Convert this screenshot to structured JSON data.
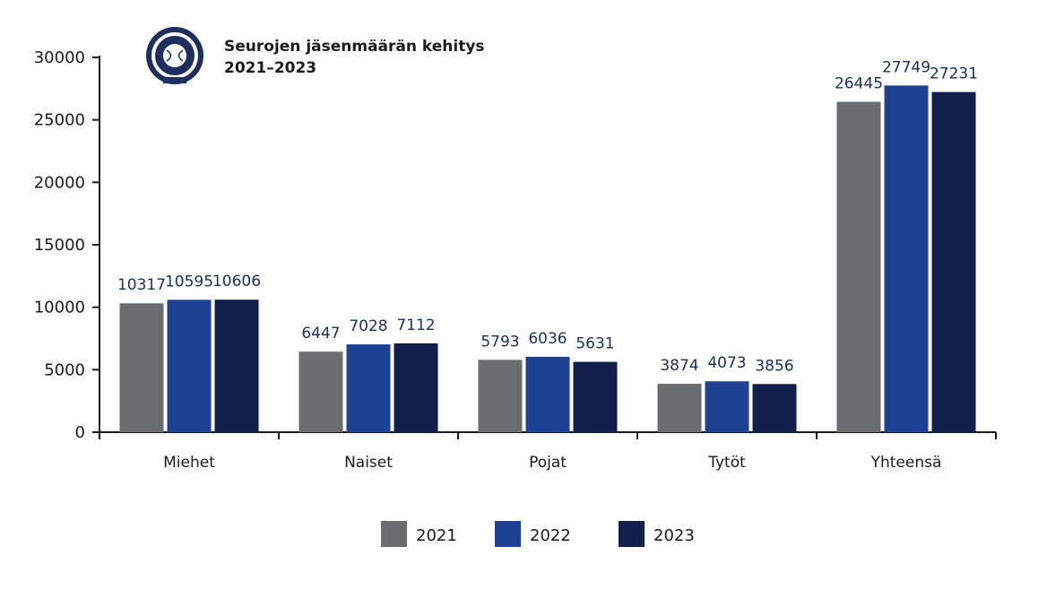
{
  "chart_data": {
    "type": "bar",
    "title_lines": [
      "Seurojen jäsenmäärän kehitys",
      "2021–2023"
    ],
    "categories": [
      "Miehet",
      "Naiset",
      "Pojat",
      "Tytöt",
      "Yhteensä"
    ],
    "series": [
      {
        "name": "2021",
        "color": "#6b6e71",
        "values": [
          10317,
          6447,
          5793,
          3874,
          26445
        ]
      },
      {
        "name": "2022",
        "color": "#1f4194",
        "values": [
          10595,
          7028,
          6036,
          4073,
          27749
        ]
      },
      {
        "name": "2023",
        "color": "#121f4a",
        "values": [
          10606,
          7112,
          5631,
          3856,
          27231
        ]
      }
    ],
    "ylim": [
      0,
      30000
    ],
    "yticks": [
      0,
      5000,
      10000,
      15000,
      20000,
      25000,
      30000
    ],
    "grid": false,
    "legend_position": "bottom-center",
    "logo": {
      "icon": "club-emblem-icon",
      "color": "#1c2f60"
    }
  }
}
